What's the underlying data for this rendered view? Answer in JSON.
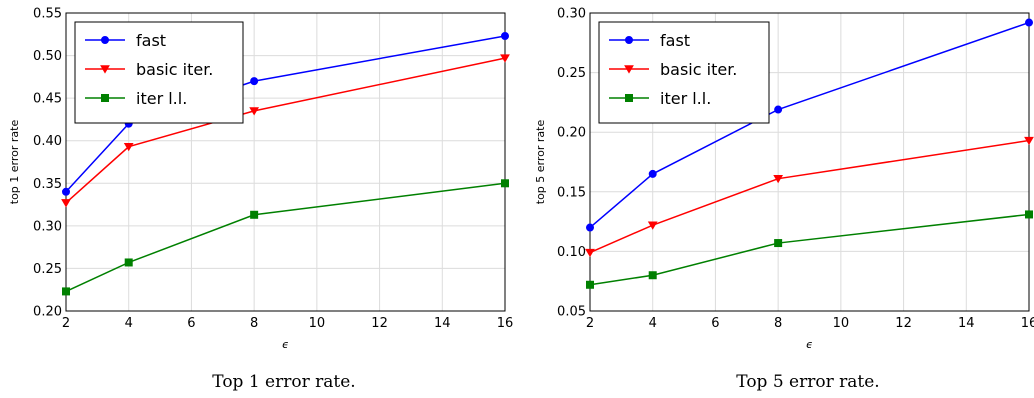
{
  "chart_data": [
    {
      "type": "line",
      "caption": "Top 1 error rate.",
      "xlabel": "ϵ",
      "ylabel": "top 1 error rate",
      "xlim": [
        2,
        16
      ],
      "ylim": [
        0.2,
        0.55
      ],
      "xticks": [
        2,
        4,
        6,
        8,
        10,
        12,
        14,
        16
      ],
      "yticks": [
        "0.20",
        "0.25",
        "0.30",
        "0.35",
        "0.40",
        "0.45",
        "0.50",
        "0.55"
      ],
      "grid": true,
      "legend": "top-left",
      "x": [
        2,
        4,
        8,
        16
      ],
      "series": [
        {
          "name": "fast",
          "color": "#0000ff",
          "marker": "circle",
          "values": [
            0.34,
            0.42,
            0.47,
            0.523
          ]
        },
        {
          "name": "basic iter.",
          "color": "#ff0000",
          "marker": "triangle-down",
          "values": [
            0.327,
            0.393,
            0.435,
            0.497
          ]
        },
        {
          "name": "iter l.l.",
          "color": "#008000",
          "marker": "square",
          "values": [
            0.223,
            0.257,
            0.313,
            0.35
          ]
        }
      ]
    },
    {
      "type": "line",
      "caption": "Top 5 error rate.",
      "xlabel": "ϵ",
      "ylabel": "top 5 error rate",
      "xlim": [
        2,
        16
      ],
      "ylim": [
        0.05,
        0.3
      ],
      "xticks": [
        2,
        4,
        6,
        8,
        10,
        12,
        14,
        16
      ],
      "yticks": [
        "0.05",
        "0.10",
        "0.15",
        "0.20",
        "0.25",
        "0.30"
      ],
      "grid": true,
      "legend": "top-left",
      "x": [
        2,
        4,
        8,
        16
      ],
      "series": [
        {
          "name": "fast",
          "color": "#0000ff",
          "marker": "circle",
          "values": [
            0.12,
            0.165,
            0.219,
            0.292
          ]
        },
        {
          "name": "basic iter.",
          "color": "#ff0000",
          "marker": "triangle-down",
          "values": [
            0.099,
            0.122,
            0.161,
            0.193
          ]
        },
        {
          "name": "iter l.l.",
          "color": "#008000",
          "marker": "square",
          "values": [
            0.072,
            0.08,
            0.107,
            0.131
          ]
        }
      ]
    }
  ]
}
